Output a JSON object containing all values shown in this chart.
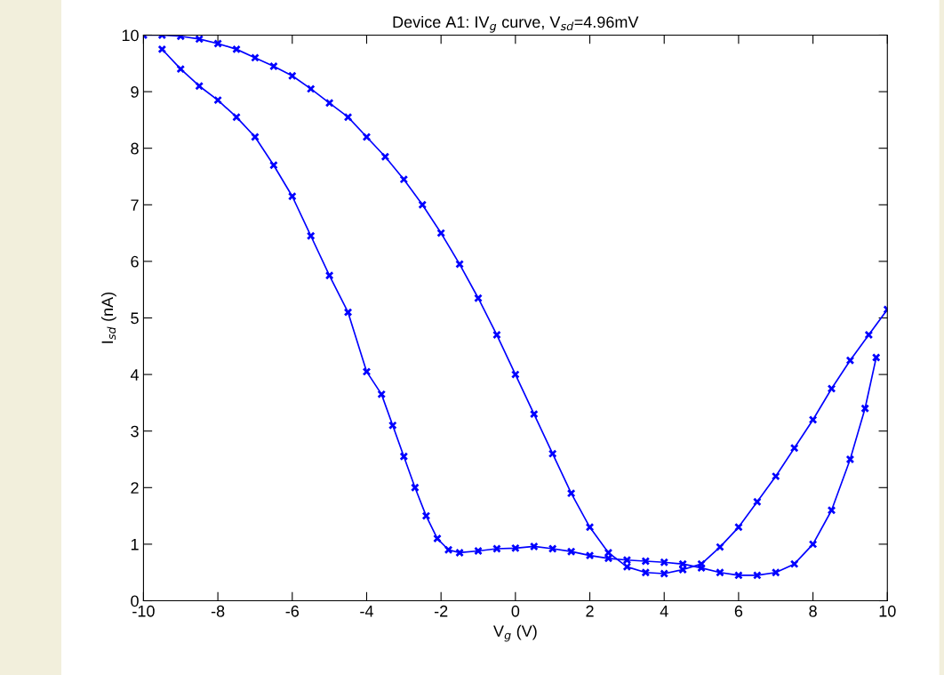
{
  "chart_data": {
    "type": "line",
    "title": "Device A1: IV$_{g}$ curve, V$_{sd}$=4.96mV",
    "xlabel": "V$_{g}$ (V)",
    "ylabel": "I$_{sd}$ (nA)",
    "series": [
      {
        "color": "#0000ff",
        "x": [
          -10,
          -9.5,
          -9,
          -8.5,
          -8,
          -7.5,
          -7,
          -6.5,
          -6,
          -5.5,
          -5,
          -4.5,
          -4,
          -3.5,
          -3,
          -2.5,
          -2,
          -1.5,
          -1,
          -0.5,
          0,
          0.5,
          1,
          1.5,
          2,
          2.5,
          3,
          3.5,
          4,
          4.5,
          5,
          5.5,
          6,
          6.5,
          7,
          7.5,
          8,
          8.5,
          9,
          9.5,
          10
        ],
        "values": [
          10,
          10,
          9.98,
          9.93,
          9.85,
          9.75,
          9.6,
          9.45,
          9.28,
          9.05,
          8.8,
          8.55,
          8.2,
          7.85,
          7.45,
          7.0,
          6.5,
          5.95,
          5.35,
          4.7,
          4.0,
          3.3,
          2.6,
          1.9,
          1.3,
          0.85,
          0.6,
          0.5,
          0.48,
          0.55,
          0.65,
          0.95,
          1.3,
          1.75,
          2.2,
          2.7,
          3.2,
          3.75,
          4.25,
          4.7,
          5.15
        ]
      },
      {
        "color": "#0000ff",
        "x": [
          9.7,
          9.4,
          9,
          8.5,
          8,
          7.5,
          7,
          6.5,
          6,
          5.5,
          5,
          4.5,
          4,
          3.5,
          3,
          2.5,
          2,
          1.5,
          1,
          0.5,
          0,
          -0.5,
          -1,
          -1.5,
          -1.8,
          -2.1,
          -2.4,
          -2.7,
          -3,
          -3.3,
          -3.6,
          -4,
          -4.5,
          -5,
          -5.5,
          -6,
          -6.5,
          -7,
          -7.5,
          -8,
          -8.5,
          -9,
          -9.5
        ],
        "values": [
          4.3,
          3.4,
          2.5,
          1.6,
          1.0,
          0.65,
          0.5,
          0.45,
          0.45,
          0.5,
          0.58,
          0.65,
          0.68,
          0.7,
          0.72,
          0.75,
          0.8,
          0.87,
          0.92,
          0.96,
          0.93,
          0.92,
          0.88,
          0.85,
          0.9,
          1.1,
          1.5,
          2.0,
          2.55,
          3.1,
          3.65,
          4.05,
          5.1,
          5.75,
          6.45,
          7.15,
          7.7,
          8.2,
          8.55,
          8.85,
          9.1,
          9.4,
          9.75
        ]
      }
    ],
    "xlim": [
      -10,
      10
    ],
    "ylim": [
      0,
      10
    ],
    "xticks": [
      -10,
      -8,
      -6,
      -4,
      -2,
      0,
      2,
      4,
      6,
      8,
      10
    ],
    "yticks": [
      0,
      1,
      2,
      3,
      4,
      5,
      6,
      7,
      8,
      9,
      10
    ],
    "marker": "cross",
    "line_style": "solid",
    "grid": false,
    "legend": false
  }
}
